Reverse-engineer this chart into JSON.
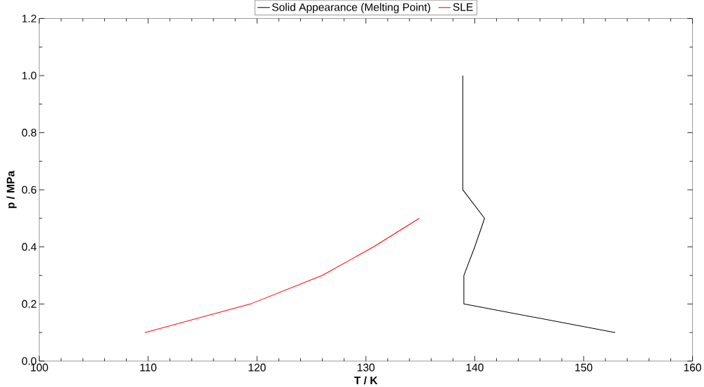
{
  "chart_data": {
    "type": "line",
    "xlabel": "T / K",
    "ylabel": "p / MPa",
    "xlim": [
      100,
      160
    ],
    "xticks": [
      100,
      110,
      120,
      130,
      140,
      150,
      160
    ],
    "ylim": [
      0,
      1.2
    ],
    "yticks": [
      {
        "value": 0,
        "label": "0.0"
      },
      0.2,
      0.4,
      0.6,
      0.8,
      {
        "value": 1.0,
        "label": "1.0"
      },
      1.2
    ],
    "legend": "top",
    "grid": false,
    "marker": "none",
    "line_style": "solid",
    "series": [
      {
        "name": "Solid Appearance (Melting Point)",
        "color": "#000000",
        "x": [
          138.9,
          138.9,
          140.9,
          140.0,
          139.0,
          139.0,
          152.9
        ],
        "values": [
          1.0,
          0.6,
          0.5,
          0.4,
          0.3,
          0.2,
          0.1
        ]
      },
      {
        "name": "SLE",
        "color": "#ff0000",
        "x": [
          109.7,
          119.4,
          126.0,
          130.7,
          134.9
        ],
        "values": [
          0.1,
          0.2,
          0.3,
          0.4,
          0.5
        ]
      }
    ]
  }
}
